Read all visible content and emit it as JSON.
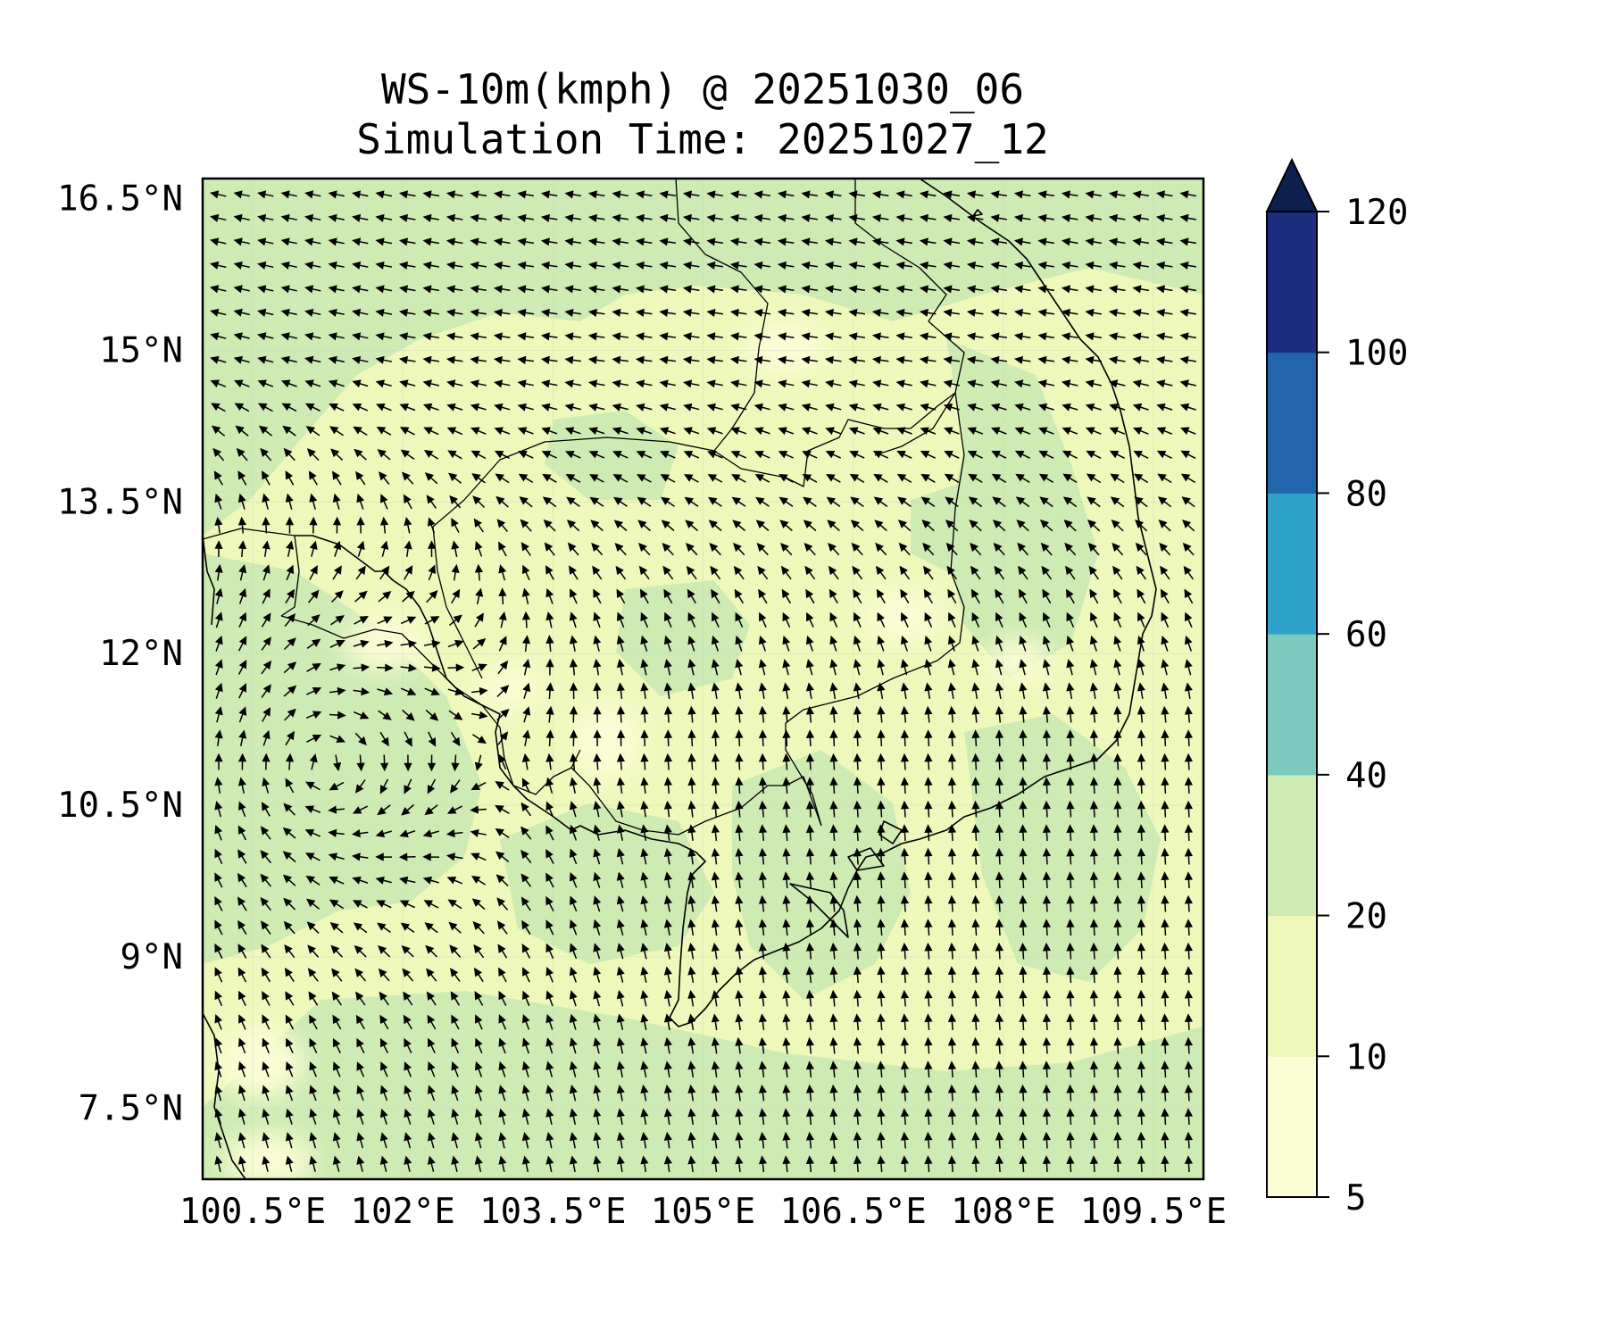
{
  "title": {
    "line1": "WS-10m(kmph) @ 20251030_06",
    "line2": "Simulation Time: 20251027_12"
  },
  "map": {
    "lon_range": [
      100.0,
      110.0
    ],
    "lat_range": [
      6.8,
      16.7
    ],
    "lon_ticks": [
      {
        "value": 100.5,
        "label": "100.5°E"
      },
      {
        "value": 102.0,
        "label": "102°E"
      },
      {
        "value": 103.5,
        "label": "103.5°E"
      },
      {
        "value": 105.0,
        "label": "105°E"
      },
      {
        "value": 106.5,
        "label": "106.5°E"
      },
      {
        "value": 108.0,
        "label": "108°E"
      },
      {
        "value": 109.5,
        "label": "109.5°E"
      }
    ],
    "lat_ticks": [
      {
        "value": 16.5,
        "label": "16.5°N"
      },
      {
        "value": 15.0,
        "label": "15°N"
      },
      {
        "value": 13.5,
        "label": "13.5°N"
      },
      {
        "value": 12.0,
        "label": "12°N"
      },
      {
        "value": 10.5,
        "label": "10.5°N"
      },
      {
        "value": 9.0,
        "label": "9°N"
      },
      {
        "value": 7.5,
        "label": "7.5°N"
      }
    ],
    "gridlines": true,
    "vortex_center": {
      "lon": 101.2,
      "lat": 10.9
    }
  },
  "colorbar": {
    "levels": [
      {
        "label": "5",
        "value": 5
      },
      {
        "label": "10",
        "value": 10
      },
      {
        "label": "20",
        "value": 20
      },
      {
        "label": "40",
        "value": 40
      },
      {
        "label": "60",
        "value": 60
      },
      {
        "label": "80",
        "value": 80
      },
      {
        "label": "100",
        "value": 100
      },
      {
        "label": "120",
        "value": 120
      }
    ],
    "colors": [
      "#fbfdd4",
      "#eef8bb",
      "#cdebb3",
      "#7ccabd",
      "#2ea2c8",
      "#2165ad",
      "#1d2e81",
      "#0c1f4e"
    ],
    "extend": "max"
  },
  "colors": {
    "calm": "#fbfdd4",
    "light": "#eef8bb",
    "moderate": "#cdebb3",
    "arrow": "#000000"
  }
}
